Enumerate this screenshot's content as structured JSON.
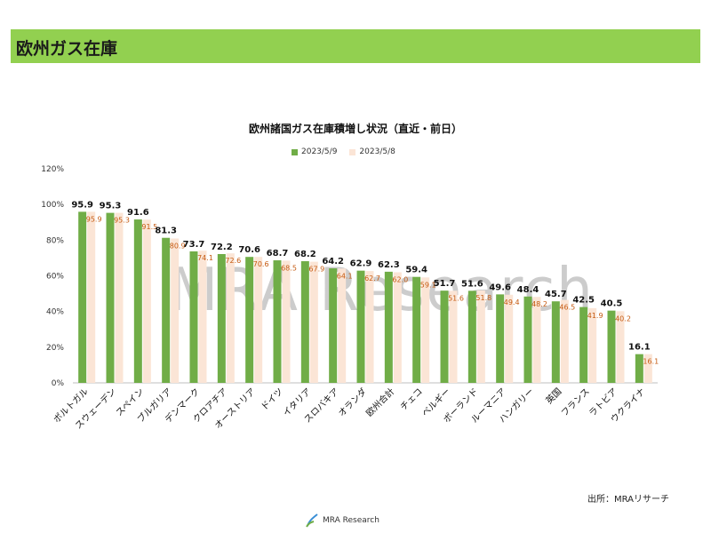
{
  "header": {
    "title": "欧州ガス在庫"
  },
  "source": "出所：MRAリサーチ",
  "logo": {
    "text": "MRA Research"
  },
  "watermark": "MRA Research",
  "colors": {
    "accent": "#92d050",
    "series1": "#70ad47",
    "series2": "#fbe5d6",
    "label2": "#c55a11"
  },
  "chart_data": {
    "type": "bar",
    "title": "欧州諸国ガス在庫積増し状況（直近・前日）",
    "ylim": [
      0,
      120
    ],
    "yticks": [
      "0%",
      "20%",
      "40%",
      "60%",
      "80%",
      "100%",
      "120%"
    ],
    "legend_position": "top",
    "categories": [
      "ポルトガル",
      "スウェーデン",
      "スペイン",
      "ブルガリア",
      "デンマーク",
      "クロアチア",
      "オーストリア",
      "ドイツ",
      "イタリア",
      "スロバキア",
      "オランダ",
      "欧州合計",
      "チェコ",
      "ベルギー",
      "ポーランド",
      "ルーマニア",
      "ハンガリー",
      "英国",
      "フランス",
      "ラトビア",
      "ウクライナ"
    ],
    "series": [
      {
        "name": "2023/5/9",
        "values": [
          95.9,
          95.3,
          91.6,
          81.3,
          73.7,
          72.2,
          70.6,
          68.7,
          68.2,
          64.2,
          62.9,
          62.3,
          59.4,
          51.7,
          51.6,
          49.6,
          48.4,
          45.7,
          42.5,
          40.5,
          16.1
        ],
        "labels": [
          "95.9",
          "95.3",
          "91.6",
          "81.3",
          "73.7",
          "72.2",
          "70.6",
          "68.7",
          "68.2",
          "64.2",
          "62.9",
          "62.3",
          "59.4",
          "51.7",
          "51.6",
          "49.6",
          "48.4",
          "45.7",
          "42.5",
          "40.5",
          "16.1"
        ]
      },
      {
        "name": "2023/5/8",
        "values": [
          95.9,
          95.3,
          91.5,
          80.9,
          74.1,
          72.6,
          70.6,
          68.5,
          67.9,
          64.1,
          62.7,
          62.0,
          59.1,
          51.6,
          51.8,
          49.4,
          48.2,
          46.5,
          41.9,
          40.2,
          16.1
        ],
        "labels": [
          "95.9",
          "95.3",
          "91.5",
          "80.9",
          "74.1",
          "72.6",
          "70.6",
          "68.5",
          "67.9",
          "64.1",
          "62.7",
          "62.0",
          "59.1",
          "51.6",
          "51.8",
          "49.4",
          "48.2",
          "46.5",
          "41.9",
          "40.2",
          "16.1"
        ]
      }
    ]
  }
}
